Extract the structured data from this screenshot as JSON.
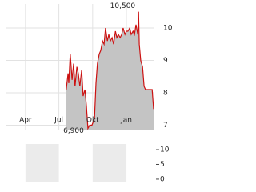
{
  "chart_data": [
    {
      "type": "area",
      "x": [
        111,
        116,
        118,
        122,
        127,
        131,
        135,
        140,
        144,
        148,
        153,
        157,
        162,
        166,
        170,
        175,
        181,
        188,
        192,
        196,
        201,
        205,
        210,
        214,
        218,
        223,
        227,
        231,
        236,
        240,
        245,
        249,
        253,
        258,
        262,
        266,
        271,
        275,
        279,
        284,
        288,
        293,
        297,
        301,
        306,
        308,
        310,
        314,
        319,
        323,
        327,
        332,
        341,
        345,
        349
      ],
      "values": [
        8.1,
        8.6,
        8.3,
        9.2,
        8.4,
        8.9,
        8.2,
        8.8,
        8.6,
        8.2,
        8.7,
        7.9,
        8.1,
        7.6,
        6.9,
        7.0,
        7.0,
        7.2,
        8.3,
        8.9,
        9.2,
        9.3,
        9.6,
        9.5,
        10.0,
        9.6,
        9.8,
        9.6,
        9.7,
        9.5,
        9.9,
        9.7,
        9.8,
        9.7,
        9.8,
        10.0,
        9.8,
        9.9,
        9.9,
        10.0,
        9.8,
        9.9,
        9.8,
        10.1,
        9.8,
        10.5,
        9.5,
        9.0,
        8.8,
        8.2,
        8.1,
        8.1,
        8.1,
        8.1,
        7.5
      ],
      "color": "#cc1111",
      "fill": "#c4c4c4",
      "xlim": [
        -52,
        349
      ],
      "xticks": [
        {
          "value": 0,
          "label": "Apr"
        },
        {
          "value": 91,
          "label": "Jul"
        },
        {
          "value": 183,
          "label": "Okt"
        },
        {
          "value": 275,
          "label": "Jan"
        }
      ],
      "ylim": [
        6.84,
        10.74
      ],
      "yticks": [
        7,
        8,
        9,
        10
      ],
      "grid": true,
      "annotations": [
        {
          "text": "10,500",
          "x": 308,
          "y": 10.5
        },
        {
          "text": "6,900",
          "x": 170,
          "y": 6.9
        }
      ]
    },
    {
      "type": "bar",
      "xlim": [
        -52,
        349
      ],
      "xticks": [
        {
          "value": 0,
          "label": "Apr"
        },
        {
          "value": 91,
          "label": "Jul"
        },
        {
          "value": 183,
          "label": "Okt"
        },
        {
          "value": 275,
          "label": "Jan"
        }
      ],
      "ylim": [
        -1.1,
        11.9
      ],
      "yticks": [
        0,
        5,
        10
      ]
    }
  ]
}
